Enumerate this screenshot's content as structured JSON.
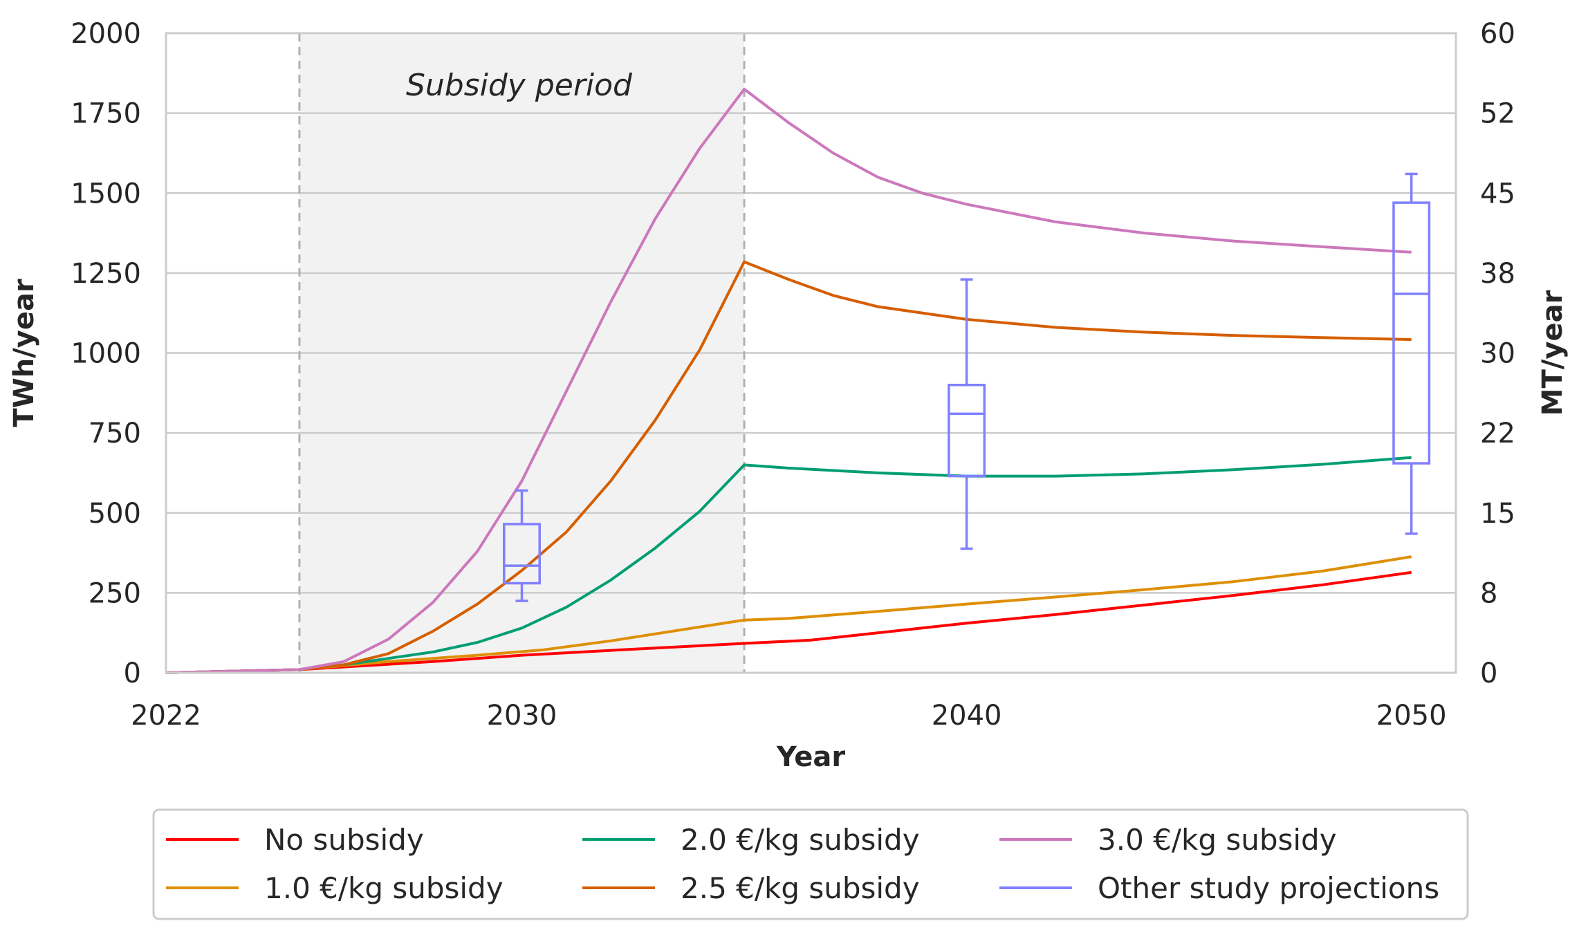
{
  "chart_data": {
    "type": "line",
    "xlabel": "Year",
    "ylabel_left": "TWh/year",
    "ylabel_right": "MT/year",
    "xlim": [
      2022,
      2051
    ],
    "ylim_left": [
      0,
      2000
    ],
    "ylim_right": [
      0,
      60
    ],
    "x_ticks": [
      2022,
      2030,
      2040,
      2050
    ],
    "y_ticks_left": [
      0,
      250,
      500,
      750,
      1000,
      1250,
      1500,
      1750,
      2000
    ],
    "y_ticks_right": [
      {
        "label": "0",
        "value": 0
      },
      {
        "label": "8",
        "value": 250
      },
      {
        "label": "15",
        "value": 500
      },
      {
        "label": "22",
        "value": 750
      },
      {
        "label": "30",
        "value": 1000
      },
      {
        "label": "38",
        "value": 1250
      },
      {
        "label": "45",
        "value": 1500
      },
      {
        "label": "52",
        "value": 1750
      },
      {
        "label": "60",
        "value": 2000
      }
    ],
    "grid": "horizontal",
    "legend_position": "bottom-center",
    "subsidy_period": {
      "start": 2025,
      "end": 2035,
      "label": "Subsidy period"
    },
    "series": [
      {
        "name": "No subsidy",
        "color": "#ff0000",
        "points": [
          [
            2022,
            0
          ],
          [
            2025,
            10
          ],
          [
            2028,
            35
          ],
          [
            2030,
            55
          ],
          [
            2032,
            70
          ],
          [
            2035,
            92
          ],
          [
            2036.5,
            102
          ],
          [
            2038,
            125
          ],
          [
            2040,
            155
          ],
          [
            2042,
            182
          ],
          [
            2044,
            212
          ],
          [
            2046,
            242
          ],
          [
            2048,
            275
          ],
          [
            2050,
            314
          ]
        ]
      },
      {
        "name": "1.0 €/kg subsidy",
        "color": "#de8f05",
        "points": [
          [
            2022,
            0
          ],
          [
            2025,
            10
          ],
          [
            2027,
            35
          ],
          [
            2029,
            55
          ],
          [
            2030.5,
            72
          ],
          [
            2032,
            100
          ],
          [
            2035,
            165
          ],
          [
            2036,
            170
          ],
          [
            2038,
            192
          ],
          [
            2040,
            215
          ],
          [
            2042,
            237
          ],
          [
            2044,
            260
          ],
          [
            2046,
            285
          ],
          [
            2048,
            318
          ],
          [
            2050,
            363
          ]
        ]
      },
      {
        "name": "2.0 €/kg subsidy",
        "color": "#029e73",
        "points": [
          [
            2022,
            0
          ],
          [
            2025,
            10
          ],
          [
            2026,
            25
          ],
          [
            2027,
            45
          ],
          [
            2028,
            65
          ],
          [
            2029,
            95
          ],
          [
            2030,
            140
          ],
          [
            2031,
            205
          ],
          [
            2032,
            290
          ],
          [
            2033,
            390
          ],
          [
            2034,
            505
          ],
          [
            2035,
            650
          ],
          [
            2036,
            640
          ],
          [
            2038,
            625
          ],
          [
            2040,
            615
          ],
          [
            2042,
            615
          ],
          [
            2044,
            622
          ],
          [
            2046,
            635
          ],
          [
            2048,
            652
          ],
          [
            2050,
            673
          ]
        ]
      },
      {
        "name": "2.5 €/kg subsidy",
        "color": "#d55e00",
        "points": [
          [
            2022,
            0
          ],
          [
            2025,
            10
          ],
          [
            2026,
            25
          ],
          [
            2027,
            60
          ],
          [
            2028,
            130
          ],
          [
            2029,
            215
          ],
          [
            2030,
            320
          ],
          [
            2031,
            440
          ],
          [
            2032,
            600
          ],
          [
            2033,
            790
          ],
          [
            2034,
            1010
          ],
          [
            2035,
            1285
          ],
          [
            2036,
            1230
          ],
          [
            2037,
            1180
          ],
          [
            2038,
            1145
          ],
          [
            2040,
            1105
          ],
          [
            2042,
            1080
          ],
          [
            2044,
            1065
          ],
          [
            2046,
            1055
          ],
          [
            2048,
            1048
          ],
          [
            2050,
            1042
          ]
        ]
      },
      {
        "name": "3.0 €/kg subsidy",
        "color": "#cc78bc",
        "points": [
          [
            2022,
            0
          ],
          [
            2025,
            10
          ],
          [
            2026,
            35
          ],
          [
            2027,
            105
          ],
          [
            2028,
            220
          ],
          [
            2029,
            380
          ],
          [
            2030,
            600
          ],
          [
            2031,
            880
          ],
          [
            2032,
            1160
          ],
          [
            2033,
            1420
          ],
          [
            2034,
            1640
          ],
          [
            2035,
            1825
          ],
          [
            2036,
            1720
          ],
          [
            2037,
            1625
          ],
          [
            2038,
            1550
          ],
          [
            2039,
            1500
          ],
          [
            2040,
            1465
          ],
          [
            2042,
            1410
          ],
          [
            2044,
            1375
          ],
          [
            2046,
            1350
          ],
          [
            2048,
            1332
          ],
          [
            2050,
            1315
          ]
        ]
      }
    ],
    "boxplots": {
      "name": "Other study projections",
      "color": "#8080ff",
      "boxes": [
        {
          "x": 2030,
          "whisker_low": 225,
          "q1": 280,
          "median": 335,
          "q3": 465,
          "whisker_high": 570
        },
        {
          "x": 2040,
          "whisker_low": 388,
          "q1": 615,
          "median": 810,
          "q3": 900,
          "whisker_high": 1230
        },
        {
          "x": 2050,
          "whisker_low": 435,
          "q1": 655,
          "median": 1185,
          "q3": 1470,
          "whisker_high": 1560
        }
      ]
    }
  }
}
